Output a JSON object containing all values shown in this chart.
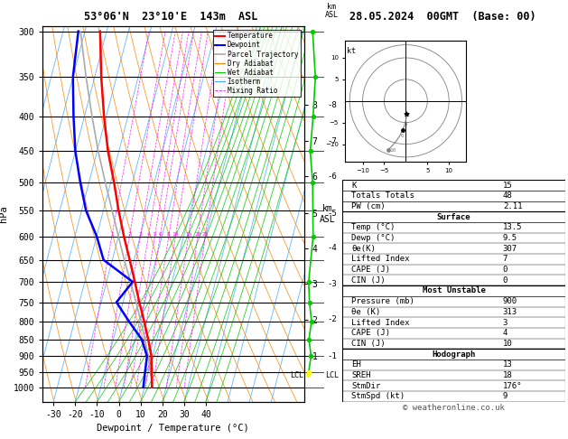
{
  "title_left": "53°06'N  23°10'E  143m  ASL",
  "title_right": "28.05.2024  00GMT  (Base: 00)",
  "xlabel": "Dewpoint / Temperature (°C)",
  "ylabel_left": "hPa",
  "pressure_levels": [
    300,
    350,
    400,
    450,
    500,
    550,
    600,
    650,
    700,
    750,
    800,
    850,
    900,
    950,
    1000
  ],
  "temp_xlim": [
    -35,
    40
  ],
  "skew_factor": 45.0,
  "background_color": "#ffffff",
  "isotherm_color": "#44aaff",
  "dry_adiabat_color": "#ff8800",
  "wet_adiabat_color": "#00cc00",
  "mixing_ratio_color": "#ff00ff",
  "temp_color": "#ff0000",
  "dewpoint_color": "#0000ff",
  "parcel_color": "#aaaaaa",
  "km_ticks": [
    1,
    2,
    3,
    4,
    5,
    6,
    7,
    8
  ],
  "km_pressures": [
    900,
    795,
    705,
    625,
    555,
    490,
    435,
    385
  ],
  "mixing_ratio_values": [
    1,
    2,
    3,
    4,
    5,
    6,
    8,
    10,
    15,
    20,
    25
  ],
  "temperature_profile": {
    "pressure": [
      1000,
      950,
      900,
      850,
      800,
      750,
      700,
      650,
      600,
      550,
      500,
      450,
      400,
      350,
      300
    ],
    "temp": [
      13.5,
      11.5,
      9.5,
      6.0,
      2.0,
      -2.5,
      -7.0,
      -12.0,
      -17.5,
      -23.0,
      -28.5,
      -35.0,
      -41.0,
      -47.0,
      -53.0
    ]
  },
  "dewpoint_profile": {
    "pressure": [
      1000,
      950,
      900,
      850,
      800,
      750,
      700,
      650,
      600,
      550,
      500,
      450,
      400,
      350,
      300
    ],
    "dewp": [
      9.5,
      8.5,
      7.5,
      3.0,
      -5.0,
      -13.0,
      -8.0,
      -24.0,
      -30.0,
      -38.0,
      -44.0,
      -50.0,
      -55.0,
      -60.0,
      -63.0
    ]
  },
  "parcel_profile": {
    "pressure": [
      960,
      950,
      900,
      850,
      800,
      750,
      700,
      650,
      600,
      550,
      500,
      450,
      400,
      350,
      300
    ],
    "temp": [
      11.5,
      11.0,
      8.0,
      4.5,
      0.5,
      -4.0,
      -9.0,
      -14.5,
      -20.0,
      -26.0,
      -32.5,
      -39.5,
      -46.5,
      -54.0,
      -62.0
    ]
  },
  "info_box": {
    "K": 15,
    "Totals Totals": 48,
    "PW (cm)": "2.11",
    "Surface": {
      "Temp (°C)": "13.5",
      "Dewp (°C)": "9.5",
      "θe(K)": "307",
      "Lifted Index": "7",
      "CAPE (J)": "0",
      "CIN (J)": "0"
    },
    "Most Unstable": {
      "Pressure (mb)": "900",
      "θe (K)": "313",
      "Lifted Index": "3",
      "CAPE (J)": "4",
      "CIN (J)": "10"
    },
    "Hodograph": {
      "EH": "13",
      "SREH": "18",
      "StmDir": "176°",
      "StmSpd (kt)": "9"
    }
  },
  "green_profile_pressures": [
    300,
    350,
    400,
    450,
    500,
    600,
    700,
    750,
    800,
    850,
    900,
    950,
    960
  ],
  "green_profile_values": [
    5.5,
    7.2,
    5.8,
    4.0,
    5.5,
    5.8,
    3.0,
    3.5,
    4.8,
    3.2,
    4.5,
    3.0,
    2.5
  ],
  "lcl_pressure": 960,
  "watermark": "© weatheronline.co.uk"
}
